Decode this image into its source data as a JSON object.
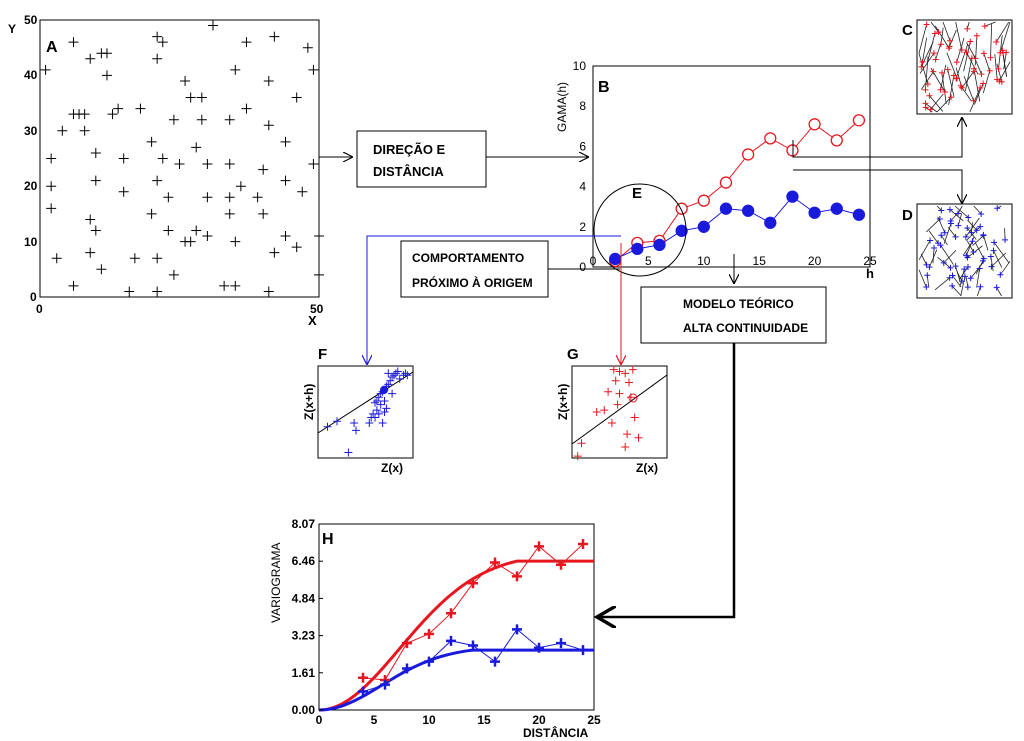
{
  "panel_labels": {
    "a": "A",
    "b": "B",
    "c": "C",
    "d": "D",
    "e": "E",
    "f": "F",
    "g": "G",
    "h": "H"
  },
  "boxes": {
    "direction": [
      "DIREÇÃO E",
      "DISTÂNCIA"
    ],
    "near_origin": [
      "COMPORTAMENTO",
      "PRÓXIMO À ORIGEM"
    ],
    "model": [
      "MODELO TEÓRICO",
      "ALTA CONTINUIDADE"
    ]
  },
  "colors": {
    "red": "#e8171f",
    "blue": "#1a1adc",
    "black": "#000000",
    "gray": "#555555"
  },
  "chart_data": [
    {
      "id": "A",
      "type": "scatter",
      "xlabel": "X",
      "ylabel": "Y",
      "xlim": [
        0,
        50
      ],
      "ylim": [
        0,
        50
      ],
      "xticks": [
        "0",
        "50"
      ],
      "yticks": [
        "0",
        "10",
        "20",
        "30",
        "40",
        "50"
      ],
      "points": [
        [
          1,
          41
        ],
        [
          6,
          46
        ],
        [
          9,
          43
        ],
        [
          11,
          44
        ],
        [
          12,
          44
        ],
        [
          21,
          47
        ],
        [
          22,
          46
        ],
        [
          31,
          49
        ],
        [
          37,
          46
        ],
        [
          42,
          47
        ],
        [
          48,
          45
        ],
        [
          12,
          40
        ],
        [
          21,
          43
        ],
        [
          26,
          39
        ],
        [
          35,
          41
        ],
        [
          41,
          39
        ],
        [
          49,
          41
        ],
        [
          6,
          33
        ],
        [
          7,
          33
        ],
        [
          8,
          33
        ],
        [
          13,
          33
        ],
        [
          14,
          34
        ],
        [
          18,
          34
        ],
        [
          27,
          36
        ],
        [
          29,
          36
        ],
        [
          37,
          34
        ],
        [
          46,
          36
        ],
        [
          4,
          30
        ],
        [
          8,
          30
        ],
        [
          20,
          28
        ],
        [
          24,
          32
        ],
        [
          29,
          32
        ],
        [
          34,
          32
        ],
        [
          41,
          31
        ],
        [
          44,
          28
        ],
        [
          2,
          25
        ],
        [
          10,
          26
        ],
        [
          15,
          25
        ],
        [
          22,
          25
        ],
        [
          28,
          27
        ],
        [
          34,
          24
        ],
        [
          49,
          24
        ],
        [
          2,
          20
        ],
        [
          10,
          21
        ],
        [
          15,
          19
        ],
        [
          21,
          21
        ],
        [
          25,
          24
        ],
        [
          30,
          24
        ],
        [
          36,
          20
        ],
        [
          40,
          23
        ],
        [
          44,
          21
        ],
        [
          2,
          16
        ],
        [
          23,
          18
        ],
        [
          30,
          18
        ],
        [
          34,
          18
        ],
        [
          39,
          18
        ],
        [
          47,
          19
        ],
        [
          9,
          14
        ],
        [
          10,
          12
        ],
        [
          20,
          15
        ],
        [
          23,
          12
        ],
        [
          26,
          10
        ],
        [
          28,
          12
        ],
        [
          30,
          11
        ],
        [
          34,
          15
        ],
        [
          40,
          15
        ],
        [
          3,
          7
        ],
        [
          9,
          8
        ],
        [
          17,
          7
        ],
        [
          21,
          7
        ],
        [
          27,
          10
        ],
        [
          35,
          10
        ],
        [
          42,
          8
        ],
        [
          44,
          11
        ],
        [
          46,
          9
        ],
        [
          50,
          11
        ],
        [
          6,
          2
        ],
        [
          11,
          5
        ],
        [
          16,
          1
        ],
        [
          21,
          1
        ],
        [
          24,
          4
        ],
        [
          33,
          2
        ],
        [
          35,
          2
        ],
        [
          41,
          1
        ],
        [
          50,
          4
        ]
      ]
    },
    {
      "id": "B",
      "type": "line",
      "ylabel": "GAMA(h)",
      "xlabel": "h",
      "xlim": [
        0,
        25
      ],
      "ylim": [
        0,
        10
      ],
      "xticks": [
        "0",
        "5",
        "10",
        "15",
        "20",
        "25"
      ],
      "yticks": [
        "0",
        "2",
        "4",
        "6",
        "8",
        "10"
      ],
      "series": [
        {
          "x": [
            2,
            4,
            6,
            8,
            10,
            12,
            14,
            16,
            18,
            20,
            22,
            24
          ],
          "values": [
            0.3,
            1.2,
            1.3,
            2.9,
            3.3,
            4.2,
            5.6,
            6.4,
            5.8,
            7.1,
            6.3,
            7.3
          ]
        },
        {
          "x": [
            2,
            4,
            6,
            8,
            10,
            12,
            14,
            16,
            18,
            20,
            22,
            24
          ],
          "values": [
            0.4,
            0.9,
            1.1,
            1.8,
            2.0,
            2.9,
            2.8,
            2.2,
            3.5,
            2.7,
            2.9,
            2.6
          ]
        }
      ]
    },
    {
      "id": "F",
      "type": "scatter",
      "xlabel": "Z(x)",
      "ylabel": "Z(x+h)",
      "points": [
        [
          0.32,
          0.94
        ],
        [
          0.74,
          0.08
        ],
        [
          0.38,
          0.62
        ],
        [
          0.6,
          0.4
        ],
        [
          0.62,
          0.38
        ],
        [
          0.64,
          0.34
        ],
        [
          0.66,
          0.3
        ],
        [
          0.68,
          0.28
        ],
        [
          0.7,
          0.26
        ],
        [
          0.72,
          0.22
        ],
        [
          0.74,
          0.2
        ],
        [
          0.76,
          0.16
        ],
        [
          0.78,
          0.12
        ],
        [
          0.8,
          0.1
        ],
        [
          0.82,
          0.08
        ],
        [
          0.84,
          0.06
        ],
        [
          0.66,
          0.42
        ],
        [
          0.7,
          0.38
        ],
        [
          0.78,
          0.3
        ],
        [
          0.62,
          0.48
        ],
        [
          0.72,
          0.46
        ],
        [
          0.58,
          0.52
        ],
        [
          0.56,
          0.56
        ],
        [
          0.6,
          0.56
        ],
        [
          0.64,
          0.52
        ],
        [
          0.86,
          0.14
        ],
        [
          0.9,
          0.1
        ],
        [
          0.92,
          0.08
        ],
        [
          0.94,
          0.1
        ],
        [
          0.7,
          0.5
        ],
        [
          0.1,
          0.66
        ],
        [
          0.2,
          0.6
        ],
        [
          0.4,
          0.7
        ],
        [
          0.54,
          0.62
        ],
        [
          0.68,
          0.62
        ]
      ]
    },
    {
      "id": "G",
      "type": "scatter",
      "xlabel": "Z(x)",
      "ylabel": "Z(x+h)",
      "points": [
        [
          0.1,
          0.84
        ],
        [
          0.06,
          0.98
        ],
        [
          0.44,
          0.04
        ],
        [
          0.5,
          0.06
        ],
        [
          0.56,
          0.08
        ],
        [
          0.64,
          0.04
        ],
        [
          0.46,
          0.16
        ],
        [
          0.6,
          0.18
        ],
        [
          0.38,
          0.28
        ],
        [
          0.5,
          0.3
        ],
        [
          0.62,
          0.34
        ],
        [
          0.48,
          0.42
        ],
        [
          0.66,
          0.56
        ],
        [
          0.42,
          0.62
        ],
        [
          0.58,
          0.74
        ],
        [
          0.26,
          0.5
        ],
        [
          0.34,
          0.48
        ],
        [
          0.7,
          0.78
        ],
        [
          0.56,
          0.88
        ]
      ]
    },
    {
      "id": "H",
      "type": "line",
      "ylabel": "VARIOGRAMA",
      "xlabel": "DISTÂNCIA",
      "xlim": [
        0,
        25
      ],
      "ylim": [
        0,
        8.07
      ],
      "xticks": [
        "0",
        "5",
        "10",
        "15",
        "20",
        "25"
      ],
      "yticks": [
        "0.00",
        "1.61",
        "3.23",
        "4.84",
        "6.46",
        "8.07"
      ],
      "series": [
        {
          "x": [
            4,
            6,
            8,
            10,
            12,
            14,
            16,
            18,
            20,
            22,
            24
          ],
          "values": [
            1.4,
            1.3,
            2.9,
            3.3,
            4.2,
            5.5,
            6.4,
            5.8,
            7.1,
            6.3,
            7.2
          ]
        },
        {
          "x": [
            4,
            6,
            8,
            10,
            12,
            14,
            16,
            18,
            20,
            22,
            24
          ],
          "values": [
            0.8,
            1.1,
            1.8,
            2.1,
            3.0,
            2.8,
            2.1,
            3.5,
            2.7,
            2.9,
            2.6
          ]
        }
      ],
      "models": [
        {
          "sill": 6.46,
          "range": 18
        },
        {
          "sill": 2.6,
          "range": 14
        }
      ]
    }
  ]
}
